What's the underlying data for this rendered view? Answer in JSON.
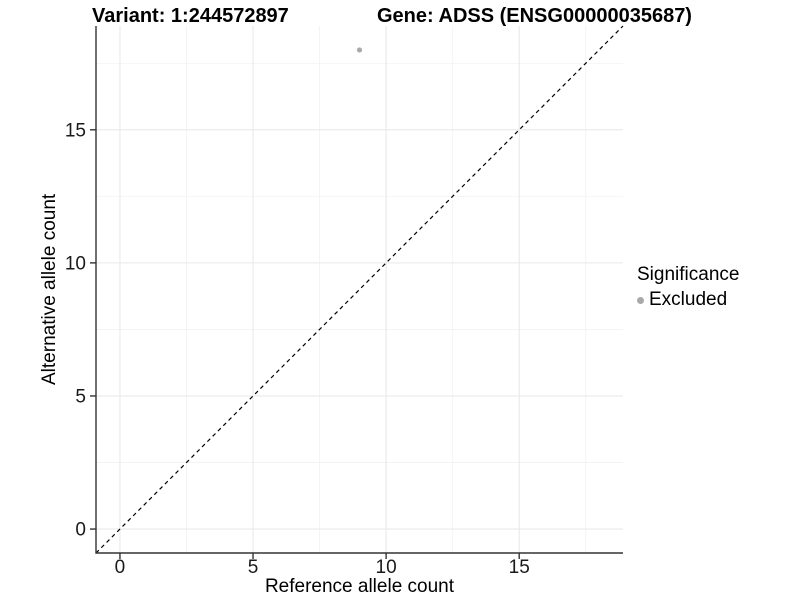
{
  "figure": {
    "title_left": "Variant: 1:244572897",
    "title_right": "Gene: ADSS (ENSG00000035687)"
  },
  "chart_data": {
    "type": "scatter",
    "title": "Variant: 1:244572897    Gene: ADSS (ENSG00000035687)",
    "xlabel": "Reference allele count",
    "ylabel": "Alternative allele count",
    "xlim": [
      -0.9,
      18.9
    ],
    "ylim": [
      -0.9,
      18.9
    ],
    "x_ticks": [
      0,
      5,
      10,
      15
    ],
    "y_ticks": [
      0,
      5,
      10,
      15
    ],
    "x_tick_labels": [
      "0",
      "5",
      "10",
      "15"
    ],
    "y_tick_labels": [
      "0",
      "5",
      "10",
      "15"
    ],
    "minor_ticks": [
      2.5,
      7.5,
      12.5,
      17.5
    ],
    "grid": "major+minor",
    "points": [
      {
        "x": 9,
        "y": 18,
        "series": "Excluded"
      }
    ],
    "reference_line": {
      "type": "identity",
      "style": "dashed",
      "from": [
        -0.9,
        -0.9
      ],
      "to": [
        18.9,
        18.9
      ]
    },
    "legend": {
      "title": "Significance",
      "position": "right",
      "entries": [
        {
          "label": "Excluded",
          "color": "#a9a9a9",
          "marker": "circle"
        }
      ]
    },
    "colors": {
      "point": "#a9a9a9",
      "reference_line": "#000000",
      "grid_major": "#e9e9e9",
      "grid_minor": "#f3f3f3",
      "axis_line": "#333333",
      "tick_text": "#1a1a1a"
    }
  }
}
